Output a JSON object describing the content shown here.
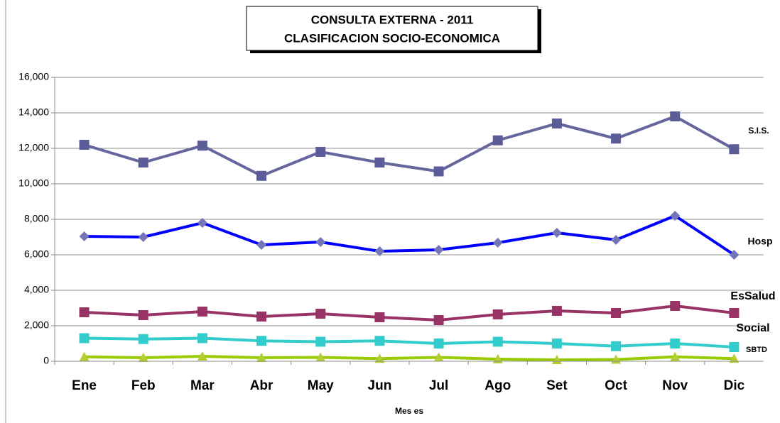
{
  "chart_data": {
    "type": "line",
    "title_lines": [
      "CONSULTA EXTERNA - 2011",
      "CLASIFICACION SOCIO-ECONOMICA"
    ],
    "x_label": "Mes es",
    "categories": [
      "Ene",
      "Feb",
      "Mar",
      "Abr",
      "May",
      "Jun",
      "Jul",
      "Ago",
      "Set",
      "Oct",
      "Nov",
      "Dic"
    ],
    "series": [
      {
        "name": "S.I.S.",
        "color": "#66669e",
        "marker": "square",
        "marker_color": "#5c5c99",
        "values": [
          12200,
          11200,
          12150,
          10450,
          11800,
          11200,
          10700,
          12450,
          13400,
          12550,
          13800,
          11950
        ]
      },
      {
        "name": "Hosp",
        "color": "#0000ff",
        "marker": "diamond",
        "marker_color": "#7474b8",
        "values": [
          7040,
          7000,
          7800,
          6560,
          6720,
          6200,
          6280,
          6680,
          7240,
          6840,
          8200,
          6000
        ]
      },
      {
        "name": "EsSalud",
        "color": "#993366",
        "marker": "square",
        "marker_color": "#993366",
        "values": [
          2760,
          2600,
          2800,
          2520,
          2680,
          2480,
          2320,
          2640,
          2840,
          2720,
          3120,
          2720
        ]
      },
      {
        "name": "Social",
        "color": "#33cccc",
        "marker": "square",
        "marker_color": "#33cccc",
        "values": [
          1300,
          1250,
          1300,
          1150,
          1100,
          1150,
          1000,
          1100,
          1000,
          850,
          1000,
          800
        ]
      },
      {
        "name": "SBTD",
        "color": "#99cc00",
        "marker": "triangle",
        "marker_color": "#b5cc33",
        "values": [
          250,
          200,
          280,
          200,
          220,
          150,
          220,
          120,
          80,
          100,
          250,
          150
        ]
      }
    ],
    "ylim": [
      0,
      16000
    ],
    "yticks": [
      0,
      {
        "value": 2000,
        "label": "2,000"
      },
      {
        "value": 4000,
        "label": "4,000"
      },
      {
        "value": 6000,
        "label": "6,000"
      },
      {
        "value": 8000,
        "label": "8,000"
      },
      {
        "value": 10000,
        "label": "10,000"
      },
      {
        "value": 12000,
        "label": "12,000"
      },
      {
        "value": 14000,
        "label": "14,000"
      },
      {
        "value": 16000,
        "label": "16,000"
      }
    ],
    "grid": true
  }
}
